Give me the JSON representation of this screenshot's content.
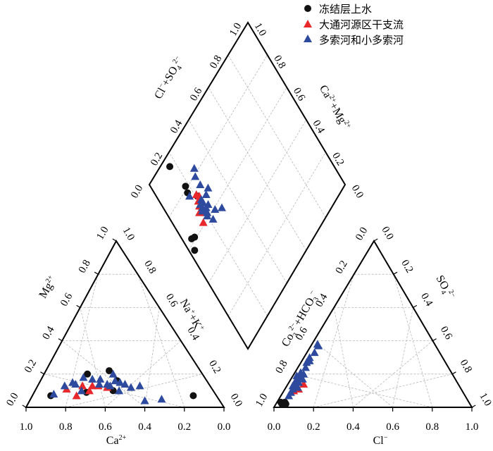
{
  "colors": {
    "frozen": "#111111",
    "datong": "#e8282b",
    "duosuo": "#2e4a9e"
  },
  "legend": [
    {
      "key": "frozen",
      "label": "冻结层上水",
      "marker": "circle"
    },
    {
      "key": "datong",
      "label": "大通河源区干支流",
      "marker": "triangle"
    },
    {
      "key": "duosuo",
      "label": "多索河和小多索河",
      "marker": "triangle"
    }
  ],
  "chart_data": {
    "type": "scatter",
    "subtype": "piper-trilinear",
    "grid": true,
    "legend_position": "top-right",
    "tick_labels": [
      "0.0",
      "0.2",
      "0.4",
      "0.6",
      "0.8",
      "1.0"
    ],
    "cation_triangle": {
      "bottom_axis": "Ca²⁺",
      "left_axis": "Mg²⁺",
      "right_axis": "Na⁺+K⁺",
      "bottom_tick_labels": [
        "1.0",
        "0.8",
        "0.6",
        "0.4",
        "0.2",
        "0.0"
      ],
      "left_tick_labels": [
        "0.0",
        "0.2",
        "0.4",
        "0.6",
        "0.8",
        "1.0"
      ],
      "right_tick_labels": [
        "0.0",
        "0.2",
        "0.4",
        "0.6",
        "0.8",
        "1.0"
      ],
      "series": [
        {
          "key": "frozen",
          "points": [
            [
              0.91,
              0.07
            ],
            [
              0.79,
              0.2
            ],
            [
              0.69,
              0.22
            ],
            [
              0.62,
              0.16
            ],
            [
              0.74,
              0.09
            ],
            [
              0.61,
              0.1
            ],
            [
              0.19,
              0.07
            ]
          ]
        },
        {
          "key": "datong",
          "points": [
            [
              0.85,
              0.11
            ],
            [
              0.78,
              0.13
            ],
            [
              0.73,
              0.13
            ],
            [
              0.7,
              0.13
            ],
            [
              0.65,
              0.12
            ],
            [
              0.73,
              0.1
            ],
            [
              0.78,
              0.07
            ]
          ]
        },
        {
          "key": "duosuo",
          "points": [
            [
              0.9,
              0.08
            ],
            [
              0.87,
              0.13
            ],
            [
              0.84,
              0.15
            ],
            [
              0.8,
              0.18
            ],
            [
              0.75,
              0.17
            ],
            [
              0.71,
              0.17
            ],
            [
              0.66,
              0.2
            ],
            [
              0.7,
              0.14
            ],
            [
              0.66,
              0.14
            ],
            [
              0.63,
              0.16
            ],
            [
              0.6,
              0.15
            ],
            [
              0.57,
              0.14
            ],
            [
              0.53,
              0.12
            ],
            [
              0.49,
              0.13
            ],
            [
              0.82,
              0.14
            ],
            [
              0.64,
              0.13
            ],
            [
              0.58,
              0.1
            ],
            [
              0.42,
              0.04
            ],
            [
              0.34,
              0.05
            ],
            [
              0.77,
              0.1
            ]
          ]
        }
      ]
    },
    "anion_triangle": {
      "bottom_axis": "Cl⁻",
      "left_axis": "Co₃²⁻+HCO₃⁻",
      "right_axis": "SO₄²⁻",
      "bottom_tick_labels": [
        "0.0",
        "0.2",
        "0.4",
        "0.6",
        "0.8",
        "1.0"
      ],
      "left_tick_labels": [
        "1.0",
        "0.8",
        "0.6",
        "0.4",
        "0.2",
        "0.0"
      ],
      "right_tick_labels": [
        "1.0",
        "0.8",
        "0.6",
        "0.4",
        "0.2",
        "0.0"
      ],
      "series": [
        {
          "key": "frozen",
          "points": [
            [
              0.03,
              0.02
            ],
            [
              0.04,
              0.02
            ],
            [
              0.05,
              0.02
            ],
            [
              0.04,
              0.03
            ],
            [
              0.02,
              0.03
            ]
          ]
        },
        {
          "key": "datong",
          "points": [
            [
              0.05,
              0.1
            ],
            [
              0.07,
              0.11
            ],
            [
              0.04,
              0.12
            ],
            [
              0.08,
              0.14
            ],
            [
              0.04,
              0.16
            ],
            [
              0.05,
              0.1
            ]
          ]
        },
        {
          "key": "duosuo",
          "points": [
            [
              0.04,
              0.07
            ],
            [
              0.04,
              0.09
            ],
            [
              0.04,
              0.11
            ],
            [
              0.03,
              0.13
            ],
            [
              0.03,
              0.16
            ],
            [
              0.04,
              0.18
            ],
            [
              0.03,
              0.21
            ],
            [
              0.04,
              0.24
            ],
            [
              0.03,
              0.27
            ],
            [
              0.03,
              0.3
            ],
            [
              0.04,
              0.33
            ],
            [
              0.04,
              0.37
            ],
            [
              0.03,
              0.38
            ],
            [
              0.04,
              0.28
            ],
            [
              0.05,
              0.2
            ],
            [
              0.02,
              0.19
            ],
            [
              0.05,
              0.15
            ],
            [
              0.04,
              0.13
            ],
            [
              0.06,
              0.12
            ],
            [
              0.06,
              0.17
            ]
          ]
        }
      ]
    },
    "diamond": {
      "left_axis": "Cl⁻+SO₄²⁻",
      "right_axis": "Ca²⁺+Mg²⁺",
      "left_tick_labels": [
        "0.0",
        "0.2",
        "0.4",
        "0.6",
        "0.8",
        "1.0"
      ],
      "right_tick_labels": [
        "0.0",
        "0.2",
        "0.4",
        "0.6",
        "0.8",
        "1.0"
      ],
      "series": [
        {
          "key": "frozen",
          "points": [
            [
              0.03,
              0.57
            ],
            [
              0.05,
              0.62
            ],
            [
              0.21,
              0.72
            ],
            [
              0.17,
              0.78
            ],
            [
              0.18,
              0.81
            ],
            [
              0.16,
              0.95
            ],
            [
              0.07,
              0.61
            ]
          ]
        },
        {
          "key": "datong",
          "points": [
            [
              0.2,
              0.7
            ],
            [
              0.22,
              0.71
            ],
            [
              0.21,
              0.73
            ],
            [
              0.19,
              0.68
            ],
            [
              0.2,
              0.67
            ],
            [
              0.2,
              0.63
            ],
            [
              0.17,
              0.66
            ],
            [
              0.16,
              0.61
            ]
          ]
        },
        {
          "key": "duosuo",
          "points": [
            [
              0.2,
              0.68
            ],
            [
              0.2,
              0.64
            ],
            [
              0.2,
              0.61
            ],
            [
              0.22,
              0.64
            ],
            [
              0.24,
              0.64
            ],
            [
              0.21,
              0.62
            ],
            [
              0.26,
              0.59
            ],
            [
              0.3,
              0.56
            ],
            [
              0.22,
              0.57
            ],
            [
              0.22,
              0.67
            ],
            [
              0.21,
              0.68
            ],
            [
              0.22,
              0.69
            ],
            [
              0.2,
              0.66
            ],
            [
              0.19,
              0.65
            ],
            [
              0.26,
              0.68
            ],
            [
              0.29,
              0.69
            ],
            [
              0.17,
              0.76
            ],
            [
              0.26,
              0.74
            ],
            [
              0.26,
              0.79
            ],
            [
              0.28,
              0.82
            ]
          ]
        }
      ]
    }
  }
}
